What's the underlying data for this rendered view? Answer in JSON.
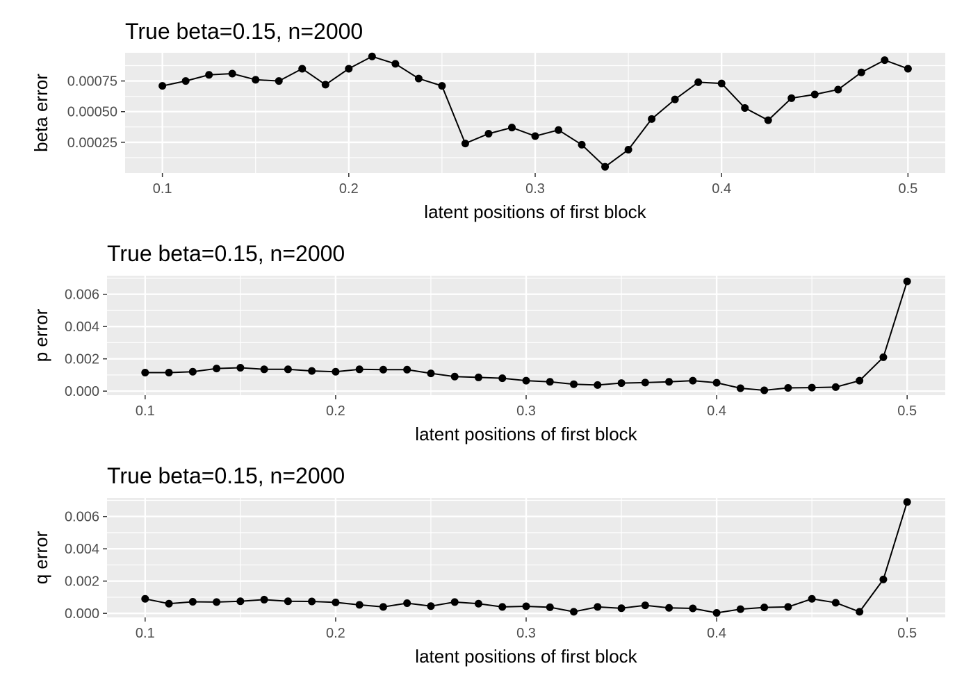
{
  "chart_data": [
    {
      "type": "line",
      "title": "True beta=0.15, n=2000",
      "xlabel": "latent positions of first block",
      "ylabel": "beta error",
      "xlim": [
        0.08,
        0.52
      ],
      "ylim": [
        0.0,
        0.00098
      ],
      "xticks": [
        0.1,
        0.2,
        0.3,
        0.4,
        0.5
      ],
      "xtick_labels": [
        "0.1",
        "0.2",
        "0.3",
        "0.4",
        "0.5"
      ],
      "yticks": [
        0.00025,
        0.0005,
        0.00075
      ],
      "ytick_labels": [
        "0.00025",
        "0.00050",
        "0.00075"
      ],
      "grid": true,
      "x": [
        0.1,
        0.1125,
        0.125,
        0.1375,
        0.15,
        0.1625,
        0.175,
        0.1875,
        0.2,
        0.2125,
        0.225,
        0.2375,
        0.25,
        0.2625,
        0.275,
        0.2875,
        0.3,
        0.3125,
        0.325,
        0.3375,
        0.35,
        0.3625,
        0.375,
        0.3875,
        0.4,
        0.4125,
        0.425,
        0.4375,
        0.45,
        0.4625,
        0.475,
        0.4875,
        0.5
      ],
      "values": [
        0.00071,
        0.00075,
        0.0008,
        0.00081,
        0.00076,
        0.00075,
        0.00085,
        0.00072,
        0.00085,
        0.00095,
        0.00089,
        0.00077,
        0.00071,
        0.00024,
        0.00032,
        0.00037,
        0.0003,
        0.00035,
        0.00023,
        5e-05,
        0.00019,
        0.00044,
        0.0006,
        0.00074,
        0.00073,
        0.00053,
        0.00043,
        0.00061,
        0.00064,
        0.00068,
        0.00082,
        0.00092,
        0.00085
      ]
    },
    {
      "type": "line",
      "title": "True beta=0.15, n=2000",
      "xlabel": "latent positions of first block",
      "ylabel": "p error",
      "xlim": [
        0.08,
        0.52
      ],
      "ylim": [
        -0.00025,
        0.00715
      ],
      "xticks": [
        0.1,
        0.2,
        0.3,
        0.4,
        0.5
      ],
      "xtick_labels": [
        "0.1",
        "0.2",
        "0.3",
        "0.4",
        "0.5"
      ],
      "yticks": [
        0.0,
        0.002,
        0.004,
        0.006
      ],
      "ytick_labels": [
        "0.000",
        "0.002",
        "0.004",
        "0.006"
      ],
      "grid": true,
      "x": [
        0.1,
        0.1125,
        0.125,
        0.1375,
        0.15,
        0.1625,
        0.175,
        0.1875,
        0.2,
        0.2125,
        0.225,
        0.2375,
        0.25,
        0.2625,
        0.275,
        0.2875,
        0.3,
        0.3125,
        0.325,
        0.3375,
        0.35,
        0.3625,
        0.375,
        0.3875,
        0.4,
        0.4125,
        0.425,
        0.4375,
        0.45,
        0.4625,
        0.475,
        0.4875,
        0.5
      ],
      "values": [
        0.00115,
        0.00115,
        0.0012,
        0.0014,
        0.00145,
        0.00135,
        0.00135,
        0.00125,
        0.0012,
        0.00135,
        0.00133,
        0.00133,
        0.0011,
        0.0009,
        0.00085,
        0.0008,
        0.00065,
        0.00058,
        0.00043,
        0.00038,
        0.0005,
        0.00053,
        0.00058,
        0.00065,
        0.00052,
        0.00018,
        5e-05,
        0.0002,
        0.00022,
        0.00025,
        0.00065,
        0.0021,
        0.0068
      ]
    },
    {
      "type": "line",
      "title": "True beta=0.15, n=2000",
      "xlabel": "latent positions of first block",
      "ylabel": "q error",
      "xlim": [
        0.08,
        0.52
      ],
      "ylim": [
        -0.00025,
        0.00715
      ],
      "xticks": [
        0.1,
        0.2,
        0.3,
        0.4,
        0.5
      ],
      "xtick_labels": [
        "0.1",
        "0.2",
        "0.3",
        "0.4",
        "0.5"
      ],
      "yticks": [
        0.0,
        0.002,
        0.004,
        0.006
      ],
      "ytick_labels": [
        "0.000",
        "0.002",
        "0.004",
        "0.006"
      ],
      "grid": true,
      "x": [
        0.1,
        0.1125,
        0.125,
        0.1375,
        0.15,
        0.1625,
        0.175,
        0.1875,
        0.2,
        0.2125,
        0.225,
        0.2375,
        0.25,
        0.2625,
        0.275,
        0.2875,
        0.3,
        0.3125,
        0.325,
        0.3375,
        0.35,
        0.3625,
        0.375,
        0.3875,
        0.4,
        0.4125,
        0.425,
        0.4375,
        0.45,
        0.4625,
        0.475,
        0.4875,
        0.5
      ],
      "values": [
        0.0009,
        0.0006,
        0.00072,
        0.0007,
        0.00075,
        0.00085,
        0.00075,
        0.00074,
        0.00068,
        0.00053,
        0.0004,
        0.00063,
        0.00045,
        0.0007,
        0.0006,
        0.0004,
        0.00044,
        0.00038,
        0.0001,
        0.0004,
        0.00032,
        0.0005,
        0.00034,
        0.00031,
        3e-05,
        0.00026,
        0.00037,
        0.0004,
        0.0009,
        0.00066,
        0.0001,
        0.0021,
        0.0069
      ]
    }
  ]
}
